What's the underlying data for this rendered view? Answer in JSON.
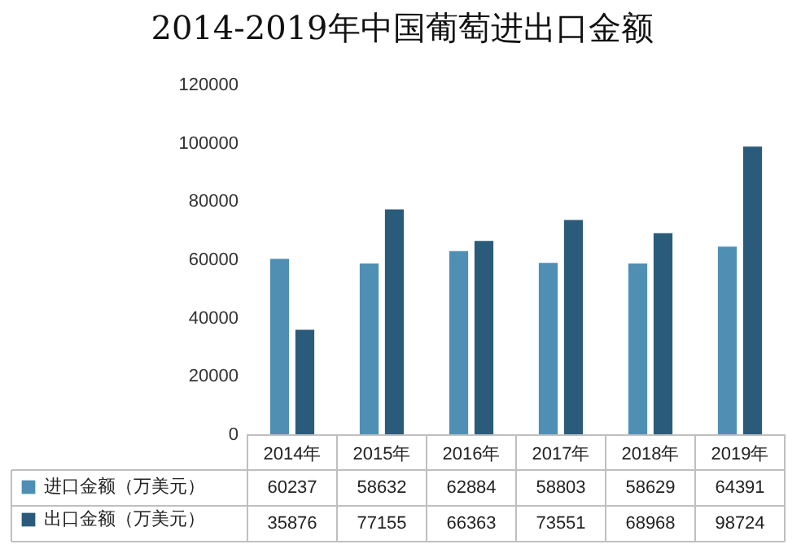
{
  "chart_data": {
    "type": "bar",
    "title": "2014-2019年中国葡萄进出口金额",
    "categories": [
      "2014年",
      "2015年",
      "2016年",
      "2017年",
      "2018年",
      "2019年"
    ],
    "series": [
      {
        "name": "进口金额（万美元）",
        "color": "#4f8fb3",
        "values": [
          60237,
          58632,
          62884,
          58803,
          58629,
          64391
        ]
      },
      {
        "name": "出口金额（万美元）",
        "color": "#2b5b7a",
        "values": [
          35876,
          77155,
          66363,
          73551,
          68968,
          98724
        ]
      }
    ],
    "ylim": [
      0,
      120000
    ],
    "yticks": [
      0,
      20000,
      40000,
      60000,
      80000,
      100000,
      120000
    ],
    "grid": false,
    "legend": "bottom left",
    "data_labels": true
  }
}
